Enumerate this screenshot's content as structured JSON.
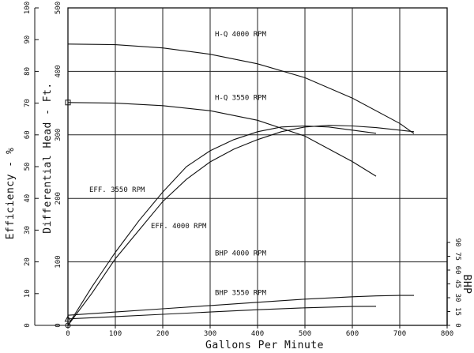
{
  "chart_data": {
    "type": "line",
    "xlabel": "Gallons Per Minute",
    "ylabel_head": "Differential Head - Ft.",
    "ylabel_eff": "Efficiency - %",
    "ylabel_bhp": "BHP",
    "xlim": [
      0,
      800
    ],
    "head_ylim": [
      0,
      500
    ],
    "eff_ylim": [
      0,
      100
    ],
    "bhp_ylim": [
      0,
      90
    ],
    "grid": true,
    "x_ticks": [
      "0",
      "100",
      "200",
      "300",
      "400",
      "500",
      "600",
      "700",
      "800"
    ],
    "head_ticks": [
      "0",
      "100",
      "200",
      "300",
      "400",
      "500"
    ],
    "eff_ticks": [
      "0",
      "10",
      "20",
      "30",
      "40",
      "50",
      "60",
      "70",
      "80",
      "90",
      "100"
    ],
    "bhp_ticks": [
      "0",
      "15",
      "30",
      "45",
      "60",
      "75",
      "90"
    ],
    "series": [
      {
        "name": "H-Q 4000 RPM",
        "axis": "head",
        "x": [
          0,
          100,
          200,
          300,
          400,
          500,
          600,
          700,
          730
        ],
        "y": [
          443,
          442,
          437,
          427,
          412,
          390,
          358,
          318,
          302
        ]
      },
      {
        "name": "H-Q 3550 RPM",
        "axis": "head",
        "x": [
          0,
          100,
          200,
          300,
          400,
          500,
          600,
          650
        ],
        "y": [
          351,
          350,
          346,
          338,
          323,
          298,
          258,
          235
        ]
      },
      {
        "name": "EFF. 3550 RPM",
        "axis": "eff",
        "x": [
          0,
          50,
          100,
          150,
          200,
          250,
          300,
          350,
          400,
          450,
          500,
          550,
          600,
          650
        ],
        "y": [
          0,
          12,
          23,
          33,
          42,
          50,
          55,
          58.5,
          61,
          62.5,
          62.8,
          62.5,
          61.5,
          60.5
        ]
      },
      {
        "name": "EFF. 4000 RPM",
        "axis": "eff",
        "x": [
          0,
          50,
          100,
          150,
          200,
          250,
          300,
          350,
          400,
          450,
          500,
          550,
          600,
          650,
          700,
          730
        ],
        "y": [
          0,
          10,
          21,
          30,
          39,
          46,
          51.5,
          55.5,
          58.5,
          61,
          62.5,
          63,
          62.8,
          62.3,
          61.5,
          61
        ]
      },
      {
        "name": "BHP 4000 RPM",
        "axis": "bhp",
        "x": [
          0,
          100,
          200,
          300,
          400,
          500,
          600,
          650,
          700,
          730
        ],
        "y": [
          11,
          14.5,
          18,
          21.5,
          25,
          28.5,
          31,
          32,
          32.5,
          32.5
        ]
      },
      {
        "name": "BHP 3550 RPM",
        "axis": "bhp",
        "x": [
          0,
          100,
          200,
          300,
          400,
          500,
          600,
          650
        ],
        "y": [
          7,
          9.5,
          12,
          14.5,
          17,
          19,
          20.5,
          20.7
        ]
      }
    ],
    "annotations": [
      {
        "text": "H-Q 4000 RPM",
        "x": 310,
        "y_head": 455
      },
      {
        "text": "H-Q 3550 RPM",
        "x": 310,
        "y_head": 355
      },
      {
        "text": "EFF. 3550 RPM",
        "x": 45,
        "y_head": 210
      },
      {
        "text": "EFF. 4000 RPM",
        "x": 175,
        "y_head": 153
      },
      {
        "text": "BHP 4000 RPM",
        "x": 310,
        "y_head": 110
      },
      {
        "text": "BHP 3550 RPM",
        "x": 310,
        "y_head": 48
      }
    ]
  }
}
